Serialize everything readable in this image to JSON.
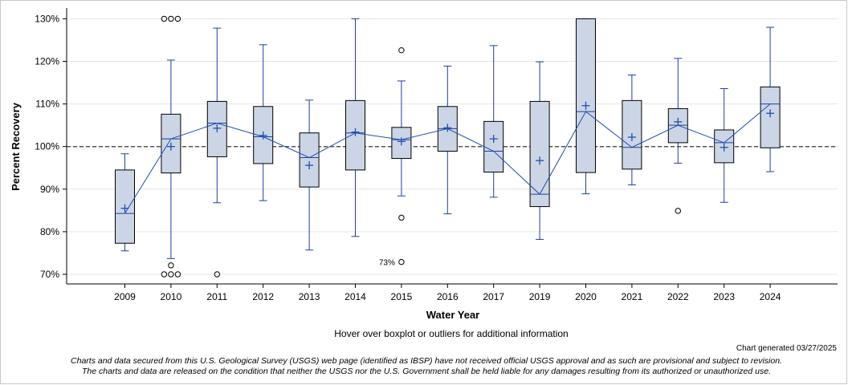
{
  "chart_data": {
    "type": "boxplot",
    "title": "",
    "xlabel": "Water Year",
    "ylabel": "Percent Recovery",
    "ylim": [
      67,
      131
    ],
    "yticks": [
      70,
      80,
      90,
      100,
      110,
      120,
      130
    ],
    "ytick_labels": [
      "70%",
      "80%",
      "90%",
      "100%",
      "110%",
      "120%",
      "130%"
    ],
    "reference_line": 100,
    "categories": [
      "2009",
      "2010",
      "2011",
      "2012",
      "2013",
      "2014",
      "2015",
      "2016",
      "2017",
      "2019",
      "2020",
      "2021",
      "2022",
      "2023",
      "2024"
    ],
    "boxes": [
      {
        "year": "2009",
        "min": 75.5,
        "q1": 77.3,
        "median": 84.3,
        "q3": 94.5,
        "max": 98.3,
        "mean": 85.5
      },
      {
        "year": "2010",
        "min": 73.7,
        "q1": 93.8,
        "median": 101.8,
        "q3": 107.6,
        "max": 120.3,
        "mean": 100.0
      },
      {
        "year": "2011",
        "min": 86.8,
        "q1": 97.6,
        "median": 105.5,
        "q3": 110.6,
        "max": 127.8,
        "mean": 104.3
      },
      {
        "year": "2012",
        "min": 87.3,
        "q1": 96.0,
        "median": 102.3,
        "q3": 109.4,
        "max": 123.9,
        "mean": 102.6
      },
      {
        "year": "2013",
        "min": 75.7,
        "q1": 90.5,
        "median": 97.4,
        "q3": 103.2,
        "max": 110.9,
        "mean": 95.6
      },
      {
        "year": "2014",
        "min": 78.9,
        "q1": 94.5,
        "median": 103.2,
        "q3": 110.8,
        "max": 130.0,
        "mean": 103.4
      },
      {
        "year": "2015",
        "min": 88.4,
        "q1": 97.2,
        "median": 101.6,
        "q3": 104.5,
        "max": 115.4,
        "mean": 101.2
      },
      {
        "year": "2016",
        "min": 84.2,
        "q1": 98.9,
        "median": 104.2,
        "q3": 109.4,
        "max": 118.9,
        "mean": 104.4
      },
      {
        "year": "2017",
        "min": 88.1,
        "q1": 94.0,
        "median": 98.9,
        "q3": 105.9,
        "max": 123.7,
        "mean": 101.8
      },
      {
        "year": "2019",
        "min": 78.2,
        "q1": 85.9,
        "median": 88.8,
        "q3": 110.6,
        "max": 119.9,
        "mean": 96.7
      },
      {
        "year": "2020",
        "min": 88.9,
        "q1": 93.9,
        "median": 108.2,
        "q3": 130.0,
        "max": 130.0,
        "mean": 109.6
      },
      {
        "year": "2021",
        "min": 91.0,
        "q1": 94.7,
        "median": 99.8,
        "q3": 110.8,
        "max": 116.8,
        "mean": 102.2
      },
      {
        "year": "2022",
        "min": 96.1,
        "q1": 100.9,
        "median": 105.0,
        "q3": 108.9,
        "max": 120.7,
        "mean": 105.8
      },
      {
        "year": "2023",
        "min": 86.9,
        "q1": 96.2,
        "median": 100.9,
        "q3": 103.9,
        "max": 113.6,
        "mean": 99.8
      },
      {
        "year": "2024",
        "min": 94.1,
        "q1": 99.7,
        "median": 110.0,
        "q3": 114.0,
        "max": 128.0,
        "mean": 107.8
      }
    ],
    "outliers": [
      {
        "year": "2010",
        "offset": -1,
        "value": 130
      },
      {
        "year": "2010",
        "offset": 0,
        "value": 130
      },
      {
        "year": "2010",
        "offset": 1,
        "value": 130
      },
      {
        "year": "2010",
        "offset": 0,
        "value": 72.1
      },
      {
        "year": "2010",
        "offset": -1,
        "value": 70
      },
      {
        "year": "2010",
        "offset": 0,
        "value": 70
      },
      {
        "year": "2010",
        "offset": 1,
        "value": 70
      },
      {
        "year": "2011",
        "offset": 0,
        "value": 70
      },
      {
        "year": "2015",
        "offset": 0,
        "value": 122.6
      },
      {
        "year": "2015",
        "offset": 0,
        "value": 83.3
      },
      {
        "year": "2015",
        "offset": 0,
        "value": 72.9
      },
      {
        "year": "2022",
        "offset": 0,
        "value": 84.9
      }
    ],
    "annotations": [
      {
        "year": "2015",
        "value": 72.9,
        "text": "73%"
      }
    ]
  },
  "hover_note": "Hover over boxplot or outliers for additional information",
  "generated": "Chart generated 03/27/2025",
  "disclaimer": {
    "line1": "Charts and data secured from this U.S. Geological Survey (USGS) web page (identified as IBSP) have not received official USGS approval and as such are provisional and subject to revision.",
    "line2": "The charts and data are released on the condition that neither the USGS nor the U.S. Government shall be held liable for any damages resulting from its authorized or unauthorized use."
  },
  "colors": {
    "box_fill": "#cbd5e5",
    "box_stroke": "#1f3fa0",
    "mean_line": "#1f4fb0",
    "gridline": "#e6e6e6",
    "reference": "#555555"
  }
}
